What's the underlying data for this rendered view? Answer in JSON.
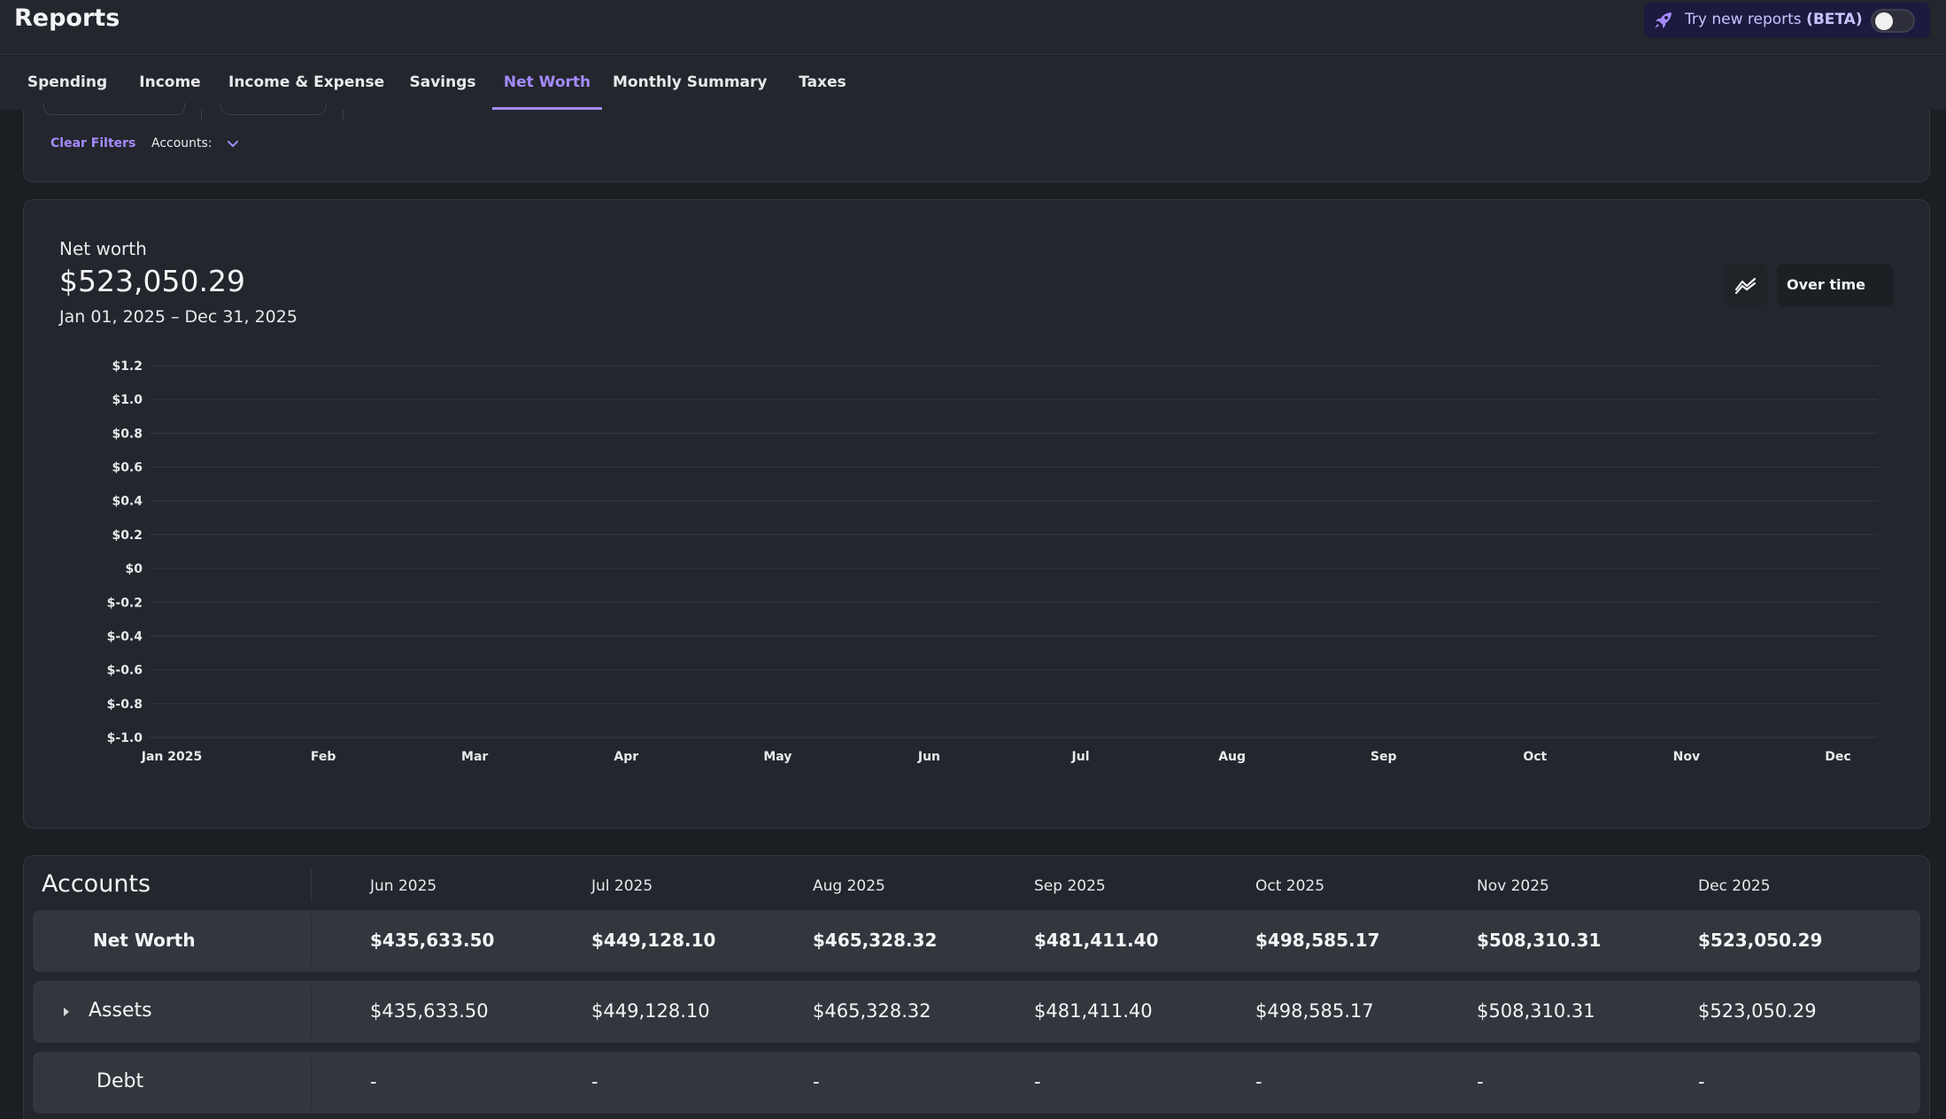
{
  "header": {
    "title": "Reports",
    "beta": {
      "prefix": "Try new reports ",
      "tag": "(BETA)",
      "enabled": false,
      "accent": "#a58bff"
    }
  },
  "tabs": [
    {
      "label": "Spending",
      "active": false
    },
    {
      "label": "Income",
      "active": false
    },
    {
      "label": "Income & Expense",
      "active": false
    },
    {
      "label": "Savings",
      "active": false
    },
    {
      "label": "Net Worth",
      "active": true
    },
    {
      "label": "Monthly Summary",
      "active": false
    },
    {
      "label": "Taxes",
      "active": false
    }
  ],
  "filters": {
    "clear_label": "Clear Filters",
    "accounts_label": "Accounts:"
  },
  "summary": {
    "label": "Net worth",
    "value": "$523,050.29",
    "range": "Jan 01, 2025 – Dec 31, 2025",
    "chart_icon": "line-chart-icon",
    "view_button": "Over time"
  },
  "chart_data": {
    "type": "line",
    "title": "",
    "xlabel": "",
    "ylabel": "",
    "categories": [
      "Jan 2025",
      "Feb",
      "Mar",
      "Apr",
      "May",
      "Jun",
      "Jul",
      "Aug",
      "Sep",
      "Oct",
      "Nov",
      "Dec"
    ],
    "y_ticks": [
      "$1.2",
      "$1.0",
      "$0.8",
      "$0.6",
      "$0.4",
      "$0.2",
      "$0",
      "$-0.2",
      "$-0.4",
      "$-0.6",
      "$-0.8",
      "$-1.0"
    ],
    "ylim": [
      -1.0,
      1.2
    ],
    "grid": true,
    "series": []
  },
  "table": {
    "title": "Accounts",
    "columns": [
      "Jun 2025",
      "Jul 2025",
      "Aug 2025",
      "Sep 2025",
      "Oct 2025",
      "Nov 2025",
      "Dec 2025"
    ],
    "rows": [
      {
        "label": "Net Worth",
        "bold": true,
        "expandable": false,
        "values": [
          "$435,633.50",
          "$449,128.10",
          "$465,328.32",
          "$481,411.40",
          "$498,585.17",
          "$508,310.31",
          "$523,050.29"
        ]
      },
      {
        "label": "Assets",
        "bold": false,
        "expandable": true,
        "values": [
          "$435,633.50",
          "$449,128.10",
          "$465,328.32",
          "$481,411.40",
          "$498,585.17",
          "$508,310.31",
          "$523,050.29"
        ]
      },
      {
        "label": "Debt",
        "bold": false,
        "expandable": false,
        "values": [
          "-",
          "-",
          "-",
          "-",
          "-",
          "-",
          "-"
        ]
      }
    ]
  }
}
